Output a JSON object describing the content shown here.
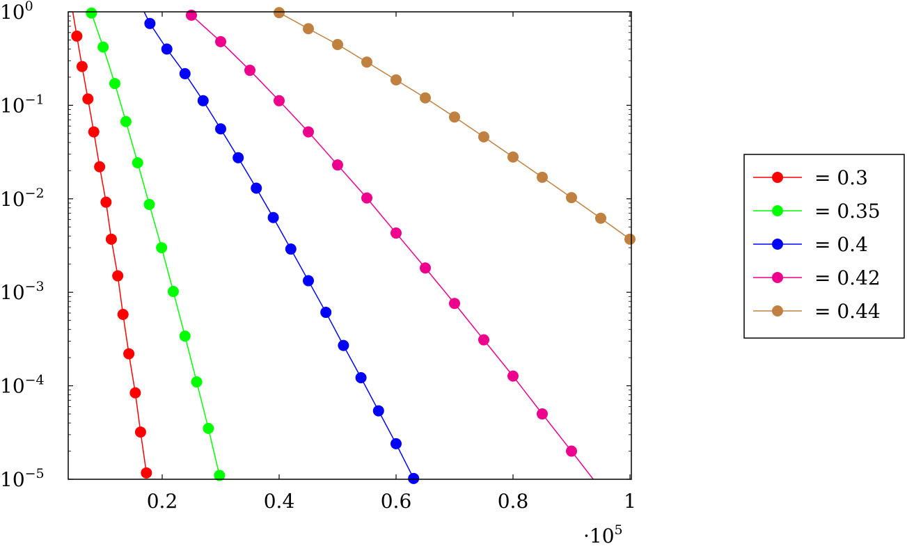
{
  "chart_data": {
    "type": "line",
    "title": "",
    "xlabel": "",
    "ylabel": "",
    "x_scale_label": "·10",
    "x_scale_exp": "5",
    "xlim": [
      0.039,
      1.0
    ],
    "ylim_log10": [
      -5,
      0
    ],
    "yscale": "log",
    "xticks": [
      "0.2",
      "0.4",
      "0.6",
      "0.8",
      "1"
    ],
    "xtick_values": [
      0.2,
      0.4,
      0.6,
      0.8,
      1.0
    ],
    "yticks": [
      {
        "base": "10",
        "exp": "0",
        "value": 1
      },
      {
        "base": "10",
        "exp": "−1",
        "value": 0.1
      },
      {
        "base": "10",
        "exp": "−2",
        "value": 0.01
      },
      {
        "base": "10",
        "exp": "−3",
        "value": 0.001
      },
      {
        "base": "10",
        "exp": "−4",
        "value": 0.0001
      },
      {
        "base": "10",
        "exp": "−5",
        "value": 1e-05
      }
    ],
    "legend_position": "outside-right",
    "series": [
      {
        "name": "= 0.3",
        "color": "#ff0000",
        "x": [
          0.045,
          0.054,
          0.063,
          0.073,
          0.083,
          0.093,
          0.104,
          0.113,
          0.124,
          0.133,
          0.143,
          0.154,
          0.163,
          0.173
        ],
        "y": [
          1.2,
          0.55,
          0.26,
          0.117,
          0.052,
          0.022,
          0.0092,
          0.0037,
          0.0015,
          0.00058,
          0.00022,
          8.4e-05,
          3.2e-05,
          1.17e-05
        ],
        "markers_from": 1
      },
      {
        "name": "= 0.35",
        "color": "#00ff00",
        "x": [
          0.079,
          0.099,
          0.119,
          0.138,
          0.158,
          0.178,
          0.199,
          0.219,
          0.239,
          0.259,
          0.279,
          0.298
        ],
        "y": [
          0.97,
          0.42,
          0.171,
          0.067,
          0.0243,
          0.0087,
          0.003,
          0.00102,
          0.00034,
          0.00011,
          3.5e-05,
          1.1e-05
        ],
        "markers_from": 0
      },
      {
        "name": "= 0.4",
        "color": "#0000ff",
        "x": [
          0.16,
          0.179,
          0.208,
          0.239,
          0.27,
          0.3,
          0.33,
          0.361,
          0.39,
          0.42,
          0.45,
          0.48,
          0.51,
          0.54,
          0.57,
          0.6,
          0.63
        ],
        "y": [
          1.3,
          0.75,
          0.4,
          0.218,
          0.112,
          0.056,
          0.0275,
          0.013,
          0.0063,
          0.0029,
          0.00133,
          0.00061,
          0.00027,
          0.000122,
          5.4e-05,
          2.4e-05,
          1.02e-05
        ],
        "markers_from": 1
      },
      {
        "name": "= 0.42",
        "color": "#ec008c",
        "x": [
          0.25,
          0.3,
          0.35,
          0.4,
          0.45,
          0.5,
          0.55,
          0.6,
          0.65,
          0.7,
          0.75,
          0.8,
          0.85,
          0.9,
          0.94
        ],
        "y": [
          0.92,
          0.48,
          0.237,
          0.112,
          0.052,
          0.023,
          0.0102,
          0.0043,
          0.00182,
          0.00076,
          0.00031,
          0.000127,
          5e-05,
          2e-05,
          9.5e-06
        ],
        "markers_from": 0,
        "markers_to": 14
      },
      {
        "name": "= 0.44",
        "color": "#c08040",
        "x": [
          0.4,
          0.45,
          0.5,
          0.55,
          0.6,
          0.65,
          0.7,
          0.75,
          0.8,
          0.85,
          0.9,
          0.95,
          1.0
        ],
        "y": [
          0.98,
          0.66,
          0.447,
          0.29,
          0.187,
          0.12,
          0.075,
          0.046,
          0.028,
          0.017,
          0.0103,
          0.0062,
          0.0037
        ],
        "markers_from": 0
      }
    ]
  }
}
